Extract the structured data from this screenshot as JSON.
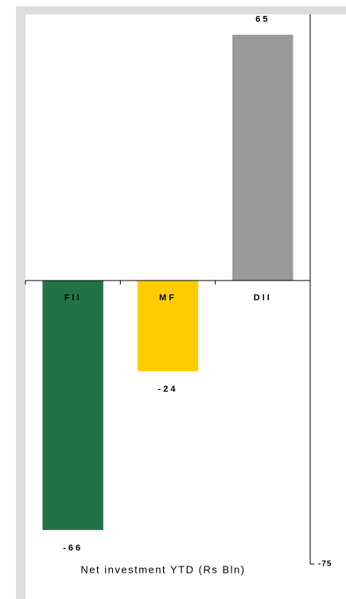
{
  "chart_data": {
    "type": "bar",
    "title": "Net investment YTD (Rs Bln)",
    "categories": [
      "FII",
      "MF",
      "DII"
    ],
    "values": [
      -66,
      -24,
      65
    ],
    "colors": [
      "#217346",
      "#ffcc00",
      "#999999"
    ],
    "ylim": [
      -75,
      70
    ],
    "yticks": [
      -75
    ]
  }
}
